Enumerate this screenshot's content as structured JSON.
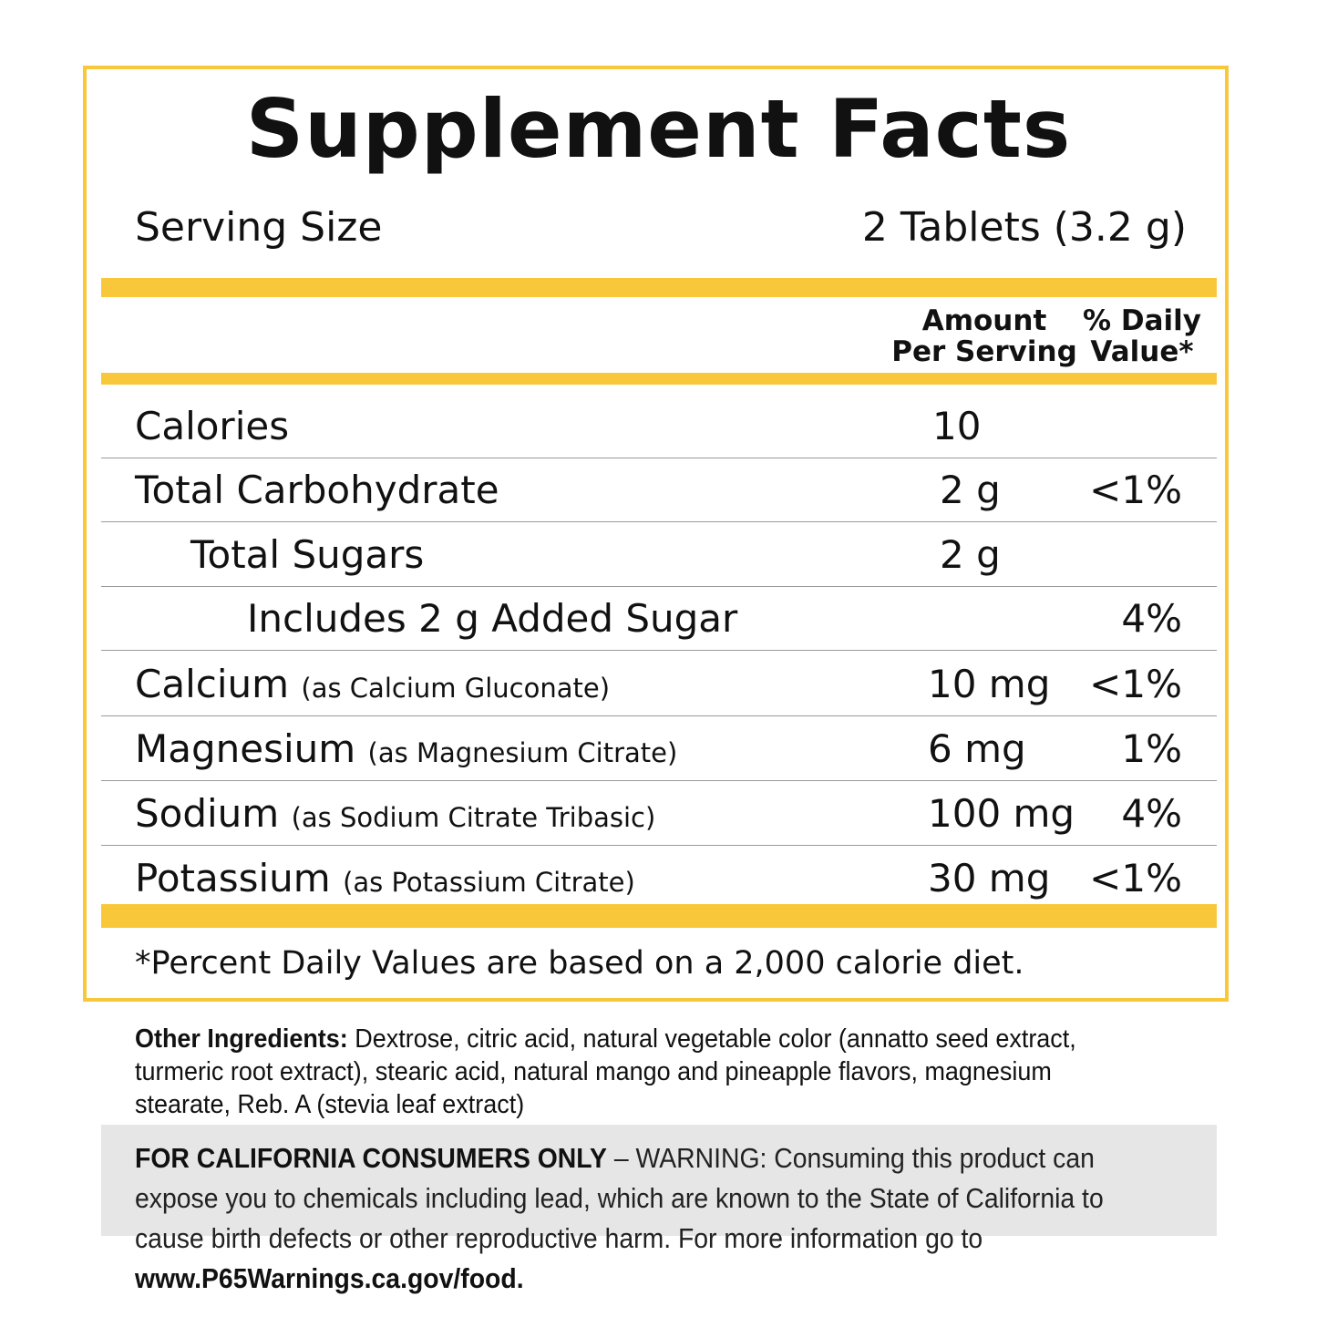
{
  "title": "Supplement Facts",
  "serving": {
    "label": "Serving Size",
    "value": "2 Tablets (3.2 g)"
  },
  "columns": {
    "amount_line1": "Amount",
    "amount_line2": "Per Serving",
    "dv_line1": "% Daily",
    "dv_line2": "Value*"
  },
  "rows": [
    {
      "name": "Calories",
      "source": "",
      "amount": "10",
      "dv": ""
    },
    {
      "name": "Total Carbohydrate",
      "source": "",
      "amount": "2 g",
      "dv": "<1%"
    },
    {
      "name": "Total Sugars",
      "source": "",
      "amount": "2 g",
      "dv": ""
    },
    {
      "name": "Includes 2 g Added Sugar",
      "source": "",
      "amount": "",
      "dv": "4%"
    },
    {
      "name": "Calcium",
      "source": "(as Calcium Gluconate)",
      "amount": "10 mg",
      "dv": "<1%"
    },
    {
      "name": "Magnesium",
      "source": "(as Magnesium Citrate)",
      "amount": "6 mg",
      "dv": "1%"
    },
    {
      "name": "Sodium",
      "source": "(as Sodium Citrate Tribasic)",
      "amount": "100 mg",
      "dv": "4%"
    },
    {
      "name": "Potassium",
      "source": "(as Potassium Citrate)",
      "amount": "30 mg",
      "dv": "<1%"
    }
  ],
  "footnote": "*Percent Daily Values are based on a 2,000 calorie diet.",
  "ingredients": {
    "label": "Other Ingredients:",
    "text": "Dextrose, citric acid, natural vegetable color (annatto seed extract, turmeric root extract), stearic acid, natural mango and pineapple flavors, magnesium stearate, Reb. A (stevia leaf extract)"
  },
  "warning": {
    "label": "FOR CALIFORNIA CONSUMERS ONLY",
    "text": "– WARNING: Consuming this product can expose you to chemicals including lead, which are known to the State of California to cause birth defects or other reproductive harm. For more information go to",
    "link": "www.P65Warnings.ca.gov/food."
  },
  "colors": {
    "accent": "#f9c73a",
    "warning_bg": "#e6e6e7"
  }
}
